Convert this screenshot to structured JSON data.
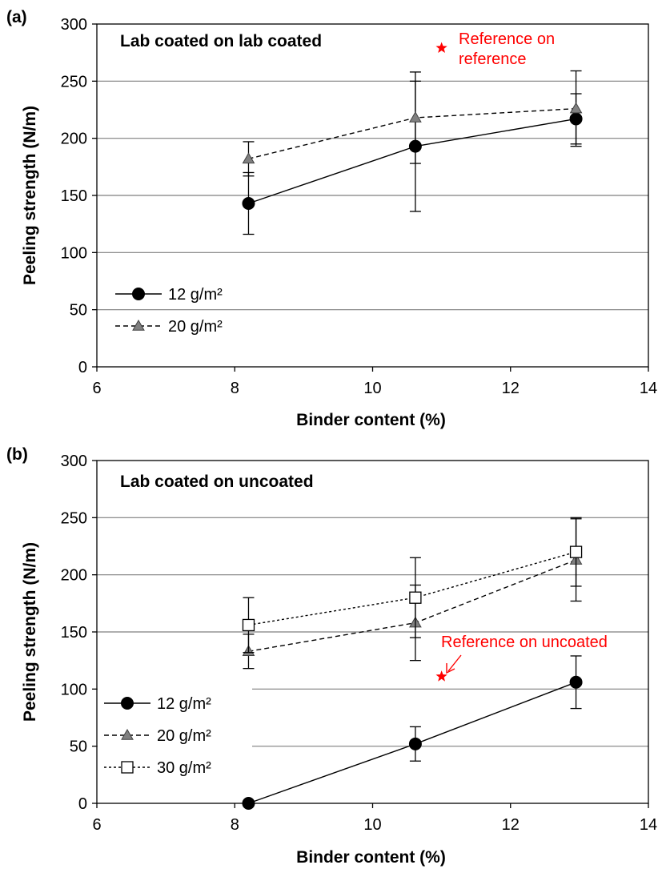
{
  "colors": {
    "axis": "#000000",
    "grid": "#7f7f7f",
    "reference": "#ff0000",
    "triangle_fill": "#808080",
    "circle_fill": "#000000",
    "square_fill": "#ffffff"
  },
  "chart_data": [
    {
      "type": "line",
      "panel_label": "(a)",
      "title": "Lab coated on lab coated",
      "xlabel": "Binder content (%)",
      "ylabel": "Peeling strength (N/m)",
      "xlim": [
        6,
        14
      ],
      "ylim": [
        0,
        300
      ],
      "xticks": [
        6,
        8,
        10,
        12,
        14
      ],
      "yticks": [
        0,
        50,
        100,
        150,
        200,
        250,
        300
      ],
      "grid": "horizontal",
      "legend_position": "lower-left",
      "series": [
        {
          "name": "12 g/m²",
          "marker": "circle",
          "line": "solid",
          "x": [
            8.2,
            10.62,
            12.95
          ],
          "y": [
            143,
            193,
            217
          ],
          "err": [
            27,
            57,
            22
          ]
        },
        {
          "name": "20 g/m²",
          "marker": "triangle",
          "line": "dashed",
          "x": [
            8.2,
            10.62,
            12.95
          ],
          "y": [
            182,
            218,
            226
          ],
          "err": [
            15,
            40,
            33
          ]
        }
      ],
      "reference": {
        "label_lines": [
          "Reference on",
          "reference"
        ],
        "marker": "star",
        "x": 11.0,
        "y": 279
      }
    },
    {
      "type": "line",
      "panel_label": "(b)",
      "title": "Lab coated on uncoated",
      "xlabel": "Binder content (%)",
      "ylabel": "Peeling strength (N/m)",
      "xlim": [
        6,
        14
      ],
      "ylim": [
        0,
        300
      ],
      "xticks": [
        6,
        8,
        10,
        12,
        14
      ],
      "yticks": [
        0,
        50,
        100,
        150,
        200,
        250,
        300
      ],
      "grid": "horizontal",
      "legend_position": "lower-left",
      "series": [
        {
          "name": "12 g/m²",
          "marker": "circle",
          "line": "solid",
          "x": [
            8.2,
            10.62,
            12.95
          ],
          "y": [
            0,
            52,
            106
          ],
          "err": [
            0,
            15,
            23
          ]
        },
        {
          "name": "20 g/m²",
          "marker": "triangle",
          "line": "dashed",
          "x": [
            8.2,
            10.62,
            12.95
          ],
          "y": [
            133,
            158,
            213
          ],
          "err": [
            15,
            33,
            36
          ]
        },
        {
          "name": "30 g/m²",
          "marker": "square",
          "line": "dotted",
          "x": [
            8.2,
            10.62,
            12.95
          ],
          "y": [
            156,
            180,
            220
          ],
          "err": [
            24,
            35,
            30
          ]
        }
      ],
      "reference": {
        "label_lines": [
          "Reference on uncoated"
        ],
        "marker": "star",
        "x": 11.0,
        "y": 111
      }
    }
  ]
}
